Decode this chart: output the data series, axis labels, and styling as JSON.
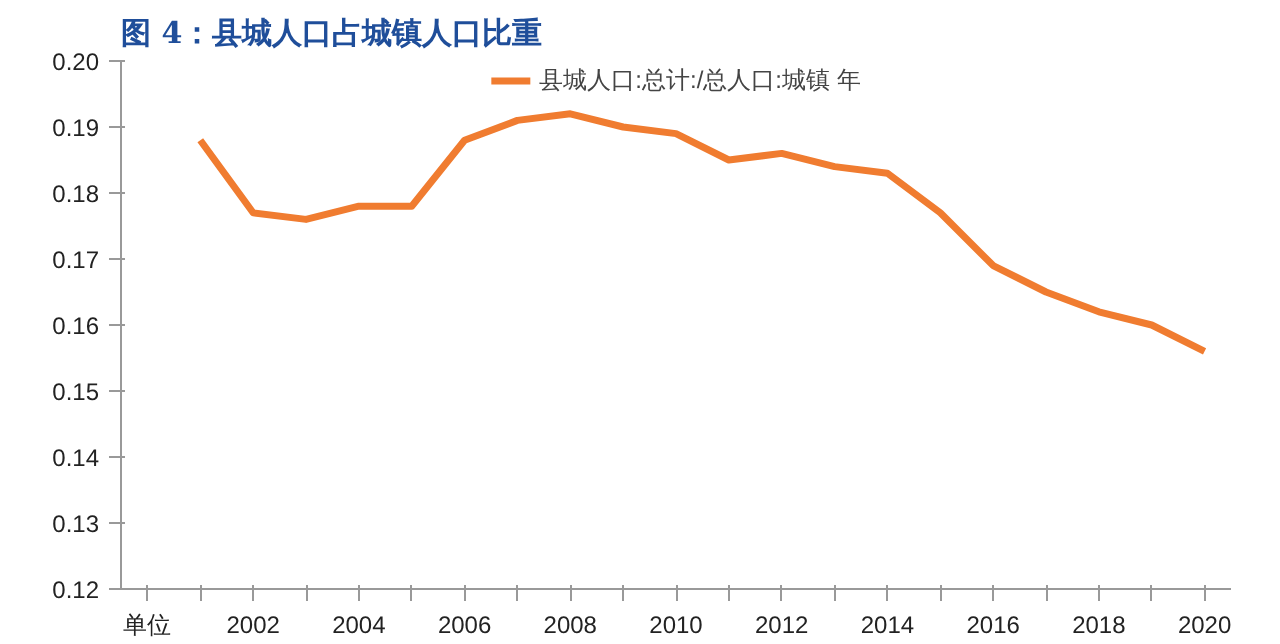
{
  "chart_data": {
    "type": "line",
    "title": "图 4：县城人口占城镇人口比重",
    "categories": [
      "单位",
      null,
      "2002",
      null,
      "2004",
      null,
      "2006",
      null,
      "2008",
      null,
      "2010",
      null,
      "2012",
      null,
      "2014",
      null,
      "2016",
      null,
      "2018",
      null,
      "2020"
    ],
    "series": [
      {
        "name": "县城人口:总计:/总人口:城镇 年",
        "color": "#f07c30",
        "values": [
          null,
          0.188,
          0.177,
          0.176,
          0.178,
          0.178,
          0.188,
          0.191,
          0.192,
          0.19,
          0.189,
          0.185,
          0.186,
          0.184,
          0.183,
          0.177,
          0.169,
          0.165,
          0.162,
          0.16,
          0.156
        ]
      }
    ],
    "ylim": [
      0.12,
      0.2
    ],
    "yticks": [
      0.12,
      0.13,
      0.14,
      0.15,
      0.16,
      0.17,
      0.18,
      0.19,
      {
        "value": 0.2,
        "label": "0.20"
      }
    ],
    "grid": false,
    "legend": "top",
    "marker": "none",
    "line_style": "solid"
  }
}
